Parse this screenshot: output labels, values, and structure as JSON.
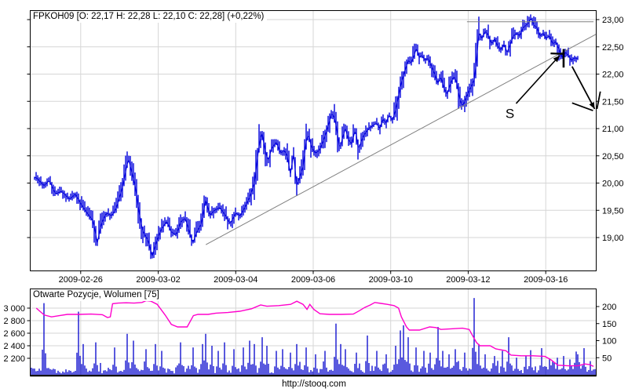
{
  "page": {
    "footer_url": "http://stooq.com"
  },
  "colors": {
    "price_bars": "#0000dd",
    "volume_bars": "#0000cc",
    "open_positions_line": "#ff00cc",
    "grid": "#d6d6d6",
    "axis": "#000000",
    "trendline": "#808080",
    "resistance_line": "#808080",
    "annotation": "#000000",
    "background": "#ffffff"
  },
  "chart_data": [
    {
      "type": "line",
      "subtype": "intraday-ohlc-bars",
      "title": "FPKOH09 [O: 22,17 H: 22,28 L: 22,10 C: 22,28] (+0,22%)",
      "ylabel": "",
      "xlabel": "",
      "ylim": [
        18.5,
        23.1
      ],
      "grid": true,
      "y_ticks": [
        {
          "label": "23,00",
          "value": 23.0
        },
        {
          "label": "22,50",
          "value": 22.5
        },
        {
          "label": "22,00",
          "value": 22.0
        },
        {
          "label": "21,50",
          "value": 21.5
        },
        {
          "label": "21,00",
          "value": 21.0
        },
        {
          "label": "20,50",
          "value": 20.5
        },
        {
          "label": "20,00",
          "value": 20.0
        },
        {
          "label": "19,50",
          "value": 19.5
        },
        {
          "label": "19,00",
          "value": 19.0
        }
      ],
      "x_ticks": [
        {
          "label": "2009-02-26",
          "t": 0.0886
        },
        {
          "label": "2009-03-02",
          "t": 0.2258
        },
        {
          "label": "2009-03-04",
          "t": 0.3629
        },
        {
          "label": "2009-03-06",
          "t": 0.5
        },
        {
          "label": "2009-03-10",
          "t": 0.6371
        },
        {
          "label": "2009-03-12",
          "t": 0.7742
        },
        {
          "label": "2009-03-16",
          "t": 0.9114
        }
      ],
      "price_path": [
        [
          0.01,
          20.1
        ],
        [
          0.024,
          19.95
        ],
        [
          0.033,
          20.05
        ],
        [
          0.044,
          19.8
        ],
        [
          0.055,
          19.85
        ],
        [
          0.069,
          19.7
        ],
        [
          0.079,
          19.8
        ],
        [
          0.09,
          19.6
        ],
        [
          0.1,
          19.45
        ],
        [
          0.111,
          19.3
        ],
        [
          0.118,
          18.9
        ],
        [
          0.125,
          19.25
        ],
        [
          0.134,
          19.45
        ],
        [
          0.144,
          19.4
        ],
        [
          0.152,
          19.55
        ],
        [
          0.162,
          19.9
        ],
        [
          0.169,
          20.25
        ],
        [
          0.173,
          20.45
        ],
        [
          0.179,
          20.2
        ],
        [
          0.186,
          19.9
        ],
        [
          0.192,
          19.45
        ],
        [
          0.199,
          19.1
        ],
        [
          0.208,
          18.95
        ],
        [
          0.215,
          18.65
        ],
        [
          0.222,
          18.9
        ],
        [
          0.231,
          19.15
        ],
        [
          0.241,
          19.3
        ],
        [
          0.249,
          19.1
        ],
        [
          0.258,
          19.05
        ],
        [
          0.266,
          19.3
        ],
        [
          0.274,
          19.35
        ],
        [
          0.281,
          19.1
        ],
        [
          0.287,
          18.9
        ],
        [
          0.294,
          19.1
        ],
        [
          0.302,
          19.25
        ],
        [
          0.31,
          19.7
        ],
        [
          0.317,
          19.4
        ],
        [
          0.325,
          19.5
        ],
        [
          0.335,
          19.55
        ],
        [
          0.345,
          19.4
        ],
        [
          0.353,
          19.25
        ],
        [
          0.363,
          19.45
        ],
        [
          0.371,
          19.4
        ],
        [
          0.379,
          19.55
        ],
        [
          0.388,
          19.75
        ],
        [
          0.396,
          20.0
        ],
        [
          0.403,
          20.6
        ],
        [
          0.409,
          20.95
        ],
        [
          0.414,
          20.65
        ],
        [
          0.42,
          20.4
        ],
        [
          0.427,
          20.65
        ],
        [
          0.435,
          20.75
        ],
        [
          0.442,
          20.55
        ],
        [
          0.449,
          20.6
        ],
        [
          0.454,
          20.5
        ],
        [
          0.46,
          20.15
        ],
        [
          0.465,
          20.55
        ],
        [
          0.471,
          19.95
        ],
        [
          0.476,
          20.1
        ],
        [
          0.482,
          20.3
        ],
        [
          0.488,
          20.8
        ],
        [
          0.492,
          20.9
        ],
        [
          0.497,
          20.65
        ],
        [
          0.504,
          20.55
        ],
        [
          0.511,
          20.6
        ],
        [
          0.517,
          20.75
        ],
        [
          0.522,
          20.9
        ],
        [
          0.528,
          21.1
        ],
        [
          0.533,
          21.3
        ],
        [
          0.539,
          21.15
        ],
        [
          0.543,
          20.9
        ],
        [
          0.547,
          20.6
        ],
        [
          0.551,
          20.8
        ],
        [
          0.557,
          21.0
        ],
        [
          0.562,
          20.8
        ],
        [
          0.568,
          20.72
        ],
        [
          0.575,
          21.0
        ],
        [
          0.58,
          20.6
        ],
        [
          0.586,
          20.8
        ],
        [
          0.591,
          20.9
        ],
        [
          0.598,
          21.0
        ],
        [
          0.605,
          21.05
        ],
        [
          0.612,
          21.1
        ],
        [
          0.618,
          21.0
        ],
        [
          0.623,
          21.18
        ],
        [
          0.629,
          21.1
        ],
        [
          0.634,
          21.25
        ],
        [
          0.64,
          21.15
        ],
        [
          0.645,
          21.3
        ],
        [
          0.651,
          21.6
        ],
        [
          0.656,
          21.85
        ],
        [
          0.662,
          22.05
        ],
        [
          0.668,
          22.25
        ],
        [
          0.673,
          22.2
        ],
        [
          0.679,
          22.35
        ],
        [
          0.683,
          22.5
        ],
        [
          0.687,
          22.3
        ],
        [
          0.692,
          22.35
        ],
        [
          0.698,
          22.25
        ],
        [
          0.703,
          22.3
        ],
        [
          0.709,
          22.15
        ],
        [
          0.715,
          22.0
        ],
        [
          0.72,
          21.82
        ],
        [
          0.726,
          21.95
        ],
        [
          0.731,
          21.75
        ],
        [
          0.737,
          21.62
        ],
        [
          0.742,
          21.8
        ],
        [
          0.748,
          21.95
        ],
        [
          0.753,
          21.9
        ],
        [
          0.759,
          21.55
        ],
        [
          0.764,
          21.4
        ],
        [
          0.77,
          21.55
        ],
        [
          0.776,
          21.7
        ],
        [
          0.781,
          21.8
        ],
        [
          0.785,
          21.9
        ],
        [
          0.789,
          22.25
        ],
        [
          0.793,
          22.75
        ],
        [
          0.799,
          22.65
        ],
        [
          0.805,
          22.8
        ],
        [
          0.81,
          22.7
        ],
        [
          0.816,
          22.55
        ],
        [
          0.821,
          22.65
        ],
        [
          0.827,
          22.5
        ],
        [
          0.832,
          22.45
        ],
        [
          0.838,
          22.55
        ],
        [
          0.843,
          22.4
        ],
        [
          0.849,
          22.55
        ],
        [
          0.854,
          22.7
        ],
        [
          0.86,
          22.75
        ],
        [
          0.866,
          22.7
        ],
        [
          0.871,
          22.85
        ],
        [
          0.877,
          22.9
        ],
        [
          0.882,
          22.95
        ],
        [
          0.886,
          23.05
        ],
        [
          0.89,
          22.9
        ],
        [
          0.896,
          22.85
        ],
        [
          0.901,
          22.7
        ],
        [
          0.907,
          22.75
        ],
        [
          0.912,
          22.65
        ],
        [
          0.918,
          22.7
        ],
        [
          0.924,
          22.55
        ],
        [
          0.929,
          22.6
        ],
        [
          0.935,
          22.45
        ],
        [
          0.94,
          22.3
        ],
        [
          0.946,
          22.4
        ],
        [
          0.951,
          22.35
        ],
        [
          0.957,
          22.25
        ],
        [
          0.962,
          22.3
        ],
        [
          0.968,
          22.28
        ]
      ],
      "trendline": {
        "x1": 0.31,
        "p1": 18.87,
        "x2": 1.0,
        "p2": 22.73
      },
      "resistance": {
        "x1": 0.772,
        "x2": 0.996,
        "p": 22.96
      },
      "annotations": {
        "s_label": "S",
        "s_pos": [
          0.848,
          21.28
        ],
        "lines": [
          {
            "x1": 0.859,
            "p1": 21.46,
            "x2": 0.936,
            "p2": 22.34,
            "arrow": true,
            "w": 1.6
          },
          {
            "x1": 0.92,
            "p1": 22.38,
            "x2": 0.944,
            "p2": 22.37,
            "arrow": false,
            "w": 2.2
          },
          {
            "x1": 0.943,
            "p1": 22.46,
            "x2": 0.943,
            "p2": 22.12,
            "arrow": false,
            "w": 2.6
          },
          {
            "x1": 0.958,
            "p1": 22.14,
            "x2": 0.998,
            "p2": 21.36,
            "arrow": true,
            "w": 1.8
          },
          {
            "x1": 0.958,
            "p1": 21.47,
            "x2": 0.995,
            "p2": 21.33,
            "arrow": false,
            "w": 1.8
          },
          {
            "x1": 1.008,
            "p1": 21.68,
            "x2": 1.002,
            "p2": 21.36,
            "arrow": false,
            "w": 1.8
          }
        ]
      }
    },
    {
      "type": "bar",
      "subtype": "volume-with-open-interest-line",
      "title": "Otwarte Pozycje, Wolumen [75]",
      "grid": true,
      "left_ticks": [
        {
          "label": "3 000",
          "value": 3000
        },
        {
          "label": "2 800",
          "value": 2800
        },
        {
          "label": "2 600",
          "value": 2600
        },
        {
          "label": "2 400",
          "value": 2400
        },
        {
          "label": "2 200",
          "value": 2200
        }
      ],
      "right_ticks": [
        {
          "label": "200",
          "value": 200
        },
        {
          "label": "150",
          "value": 150
        },
        {
          "label": "100",
          "value": 100
        },
        {
          "label": "50",
          "value": 50
        }
      ],
      "open_positions_path": [
        [
          0.01,
          3000
        ],
        [
          0.024,
          2890
        ],
        [
          0.037,
          2860
        ],
        [
          0.051,
          2880
        ],
        [
          0.065,
          2900
        ],
        [
          0.086,
          2900
        ],
        [
          0.107,
          2905
        ],
        [
          0.127,
          2895
        ],
        [
          0.136,
          2850
        ],
        [
          0.141,
          2860
        ],
        [
          0.145,
          3070
        ],
        [
          0.155,
          3080
        ],
        [
          0.169,
          3085
        ],
        [
          0.183,
          3080
        ],
        [
          0.197,
          3090
        ],
        [
          0.205,
          3120
        ],
        [
          0.213,
          3110
        ],
        [
          0.224,
          3060
        ],
        [
          0.238,
          2890
        ],
        [
          0.249,
          2740
        ],
        [
          0.26,
          2700
        ],
        [
          0.277,
          2700
        ],
        [
          0.288,
          2880
        ],
        [
          0.296,
          2900
        ],
        [
          0.314,
          2900
        ],
        [
          0.328,
          2920
        ],
        [
          0.349,
          2930
        ],
        [
          0.37,
          2950
        ],
        [
          0.391,
          2990
        ],
        [
          0.407,
          3050
        ],
        [
          0.418,
          3030
        ],
        [
          0.439,
          3040
        ],
        [
          0.46,
          3060
        ],
        [
          0.471,
          3110
        ],
        [
          0.482,
          3060
        ],
        [
          0.489,
          2980
        ],
        [
          0.494,
          3060
        ],
        [
          0.501,
          2980
        ],
        [
          0.512,
          2910
        ],
        [
          0.529,
          2900
        ],
        [
          0.55,
          2900
        ],
        [
          0.571,
          2905
        ],
        [
          0.582,
          2960
        ],
        [
          0.591,
          3010
        ],
        [
          0.601,
          3050
        ],
        [
          0.609,
          3090
        ],
        [
          0.62,
          3075
        ],
        [
          0.631,
          3060
        ],
        [
          0.643,
          3040
        ],
        [
          0.651,
          3000
        ],
        [
          0.656,
          2860
        ],
        [
          0.665,
          2700
        ],
        [
          0.67,
          2650
        ],
        [
          0.688,
          2650
        ],
        [
          0.706,
          2700
        ],
        [
          0.717,
          2690
        ],
        [
          0.726,
          2660
        ],
        [
          0.744,
          2670
        ],
        [
          0.764,
          2680
        ],
        [
          0.776,
          2660
        ],
        [
          0.782,
          2560
        ],
        [
          0.789,
          2450
        ],
        [
          0.795,
          2400
        ],
        [
          0.813,
          2400
        ],
        [
          0.823,
          2350
        ],
        [
          0.841,
          2320
        ],
        [
          0.85,
          2250
        ],
        [
          0.868,
          2240
        ],
        [
          0.889,
          2240
        ],
        [
          0.91,
          2230
        ],
        [
          0.92,
          2180
        ],
        [
          0.933,
          2090
        ],
        [
          0.951,
          2080
        ],
        [
          0.969,
          2080
        ],
        [
          0.98,
          2110
        ],
        [
          0.989,
          2100
        ],
        [
          0.996,
          2070
        ]
      ],
      "volume_spikes": [
        [
          0.024,
          210
        ],
        [
          0.086,
          185
        ],
        [
          0.094,
          90
        ],
        [
          0.116,
          95
        ],
        [
          0.148,
          80
        ],
        [
          0.172,
          120
        ],
        [
          0.183,
          100
        ],
        [
          0.204,
          75
        ],
        [
          0.22,
          90
        ],
        [
          0.231,
          70
        ],
        [
          0.266,
          95
        ],
        [
          0.287,
          80
        ],
        [
          0.305,
          90
        ],
        [
          0.31,
          120
        ],
        [
          0.321,
          85
        ],
        [
          0.331,
          70
        ],
        [
          0.342,
          95
        ],
        [
          0.36,
          75
        ],
        [
          0.377,
          80
        ],
        [
          0.388,
          100
        ],
        [
          0.397,
          90
        ],
        [
          0.409,
          110
        ],
        [
          0.418,
          85
        ],
        [
          0.435,
          70
        ],
        [
          0.446,
          75
        ],
        [
          0.46,
          65
        ],
        [
          0.471,
          90
        ],
        [
          0.488,
          80
        ],
        [
          0.504,
          60
        ],
        [
          0.522,
          70
        ],
        [
          0.539,
          150
        ],
        [
          0.548,
          90
        ],
        [
          0.557,
          75
        ],
        [
          0.577,
          65
        ],
        [
          0.595,
          115
        ],
        [
          0.612,
          70
        ],
        [
          0.629,
          60
        ],
        [
          0.647,
          85
        ],
        [
          0.654,
          130
        ],
        [
          0.661,
          145
        ],
        [
          0.668,
          110
        ],
        [
          0.681,
          80
        ],
        [
          0.695,
          70
        ],
        [
          0.706,
          65
        ],
        [
          0.72,
          140
        ],
        [
          0.73,
          70
        ],
        [
          0.74,
          60
        ],
        [
          0.751,
          75
        ],
        [
          0.767,
          65
        ],
        [
          0.785,
          225
        ],
        [
          0.792,
          90
        ],
        [
          0.803,
          60
        ],
        [
          0.82,
          55
        ],
        [
          0.834,
          70
        ],
        [
          0.845,
          110
        ],
        [
          0.861,
          50
        ],
        [
          0.875,
          55
        ],
        [
          0.886,
          72
        ],
        [
          0.904,
          78
        ],
        [
          0.917,
          45
        ],
        [
          0.931,
          50
        ],
        [
          0.942,
          55
        ],
        [
          0.954,
          45
        ],
        [
          0.964,
          68
        ],
        [
          0.968,
          60
        ],
        [
          0.979,
          78
        ],
        [
          0.989,
          40
        ]
      ],
      "volume_base_range": [
        4,
        45
      ]
    }
  ]
}
